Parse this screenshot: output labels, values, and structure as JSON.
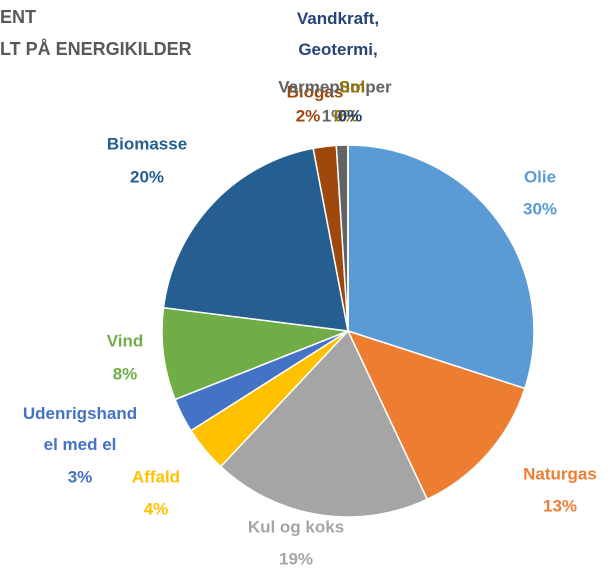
{
  "chart_data": {
    "type": "pie",
    "title_lines": [
      "ENT",
      "LT PÅ ENERGIKILDER"
    ],
    "categories": [
      "Olie",
      "Naturgas",
      "Kul og koks",
      "Affald",
      "Udenrigshandel med el",
      "Vind",
      "Biomasse",
      "Biogas",
      "Varmepumper",
      "Sol",
      "Vandkraft, Geotermi,"
    ],
    "values": [
      30,
      13,
      19,
      4,
      3,
      8,
      20,
      2,
      1,
      0,
      0
    ],
    "value_labels": [
      "30%",
      "13%",
      "19%",
      "4%",
      "3%",
      "8%",
      "20%",
      "2%",
      "1%",
      "0%",
      "0%"
    ],
    "colors": [
      "#5b9bd5",
      "#ed7d31",
      "#a5a5a5",
      "#ffc000",
      "#4472c4",
      "#70ad47",
      "#255e91",
      "#9e480e",
      "#636363",
      "#997300",
      "#264478"
    ]
  }
}
